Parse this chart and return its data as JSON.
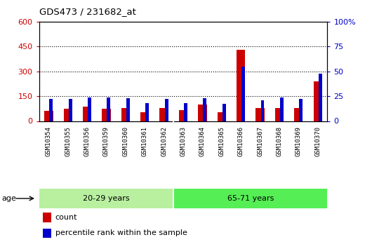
{
  "title": "GDS473 / 231682_at",
  "samples": [
    "GSM10354",
    "GSM10355",
    "GSM10356",
    "GSM10359",
    "GSM10360",
    "GSM10361",
    "GSM10362",
    "GSM10363",
    "GSM10364",
    "GSM10365",
    "GSM10366",
    "GSM10367",
    "GSM10368",
    "GSM10369",
    "GSM10370"
  ],
  "counts": [
    60,
    75,
    85,
    75,
    78,
    55,
    80,
    65,
    100,
    55,
    430,
    78,
    80,
    78,
    240
  ],
  "percentiles": [
    22,
    22,
    24,
    24,
    23,
    18,
    22,
    18,
    23,
    17,
    55,
    21,
    24,
    22,
    48
  ],
  "groups": [
    {
      "label": "20-29 years",
      "start": 0,
      "end": 7,
      "color": "#b8f0a0"
    },
    {
      "label": "65-71 years",
      "start": 7,
      "end": 15,
      "color": "#55ee55"
    }
  ],
  "ylim_left": [
    0,
    600
  ],
  "ylim_right": [
    0,
    100
  ],
  "yticks_left": [
    0,
    150,
    300,
    450,
    600
  ],
  "yticks_right": [
    0,
    25,
    50,
    75,
    100
  ],
  "bar_color_count": "#cc0000",
  "bar_color_pct": "#0000cc",
  "bg_plot": "#ffffff",
  "legend_count_label": "count",
  "legend_pct_label": "percentile rank within the sample",
  "age_label": "age"
}
